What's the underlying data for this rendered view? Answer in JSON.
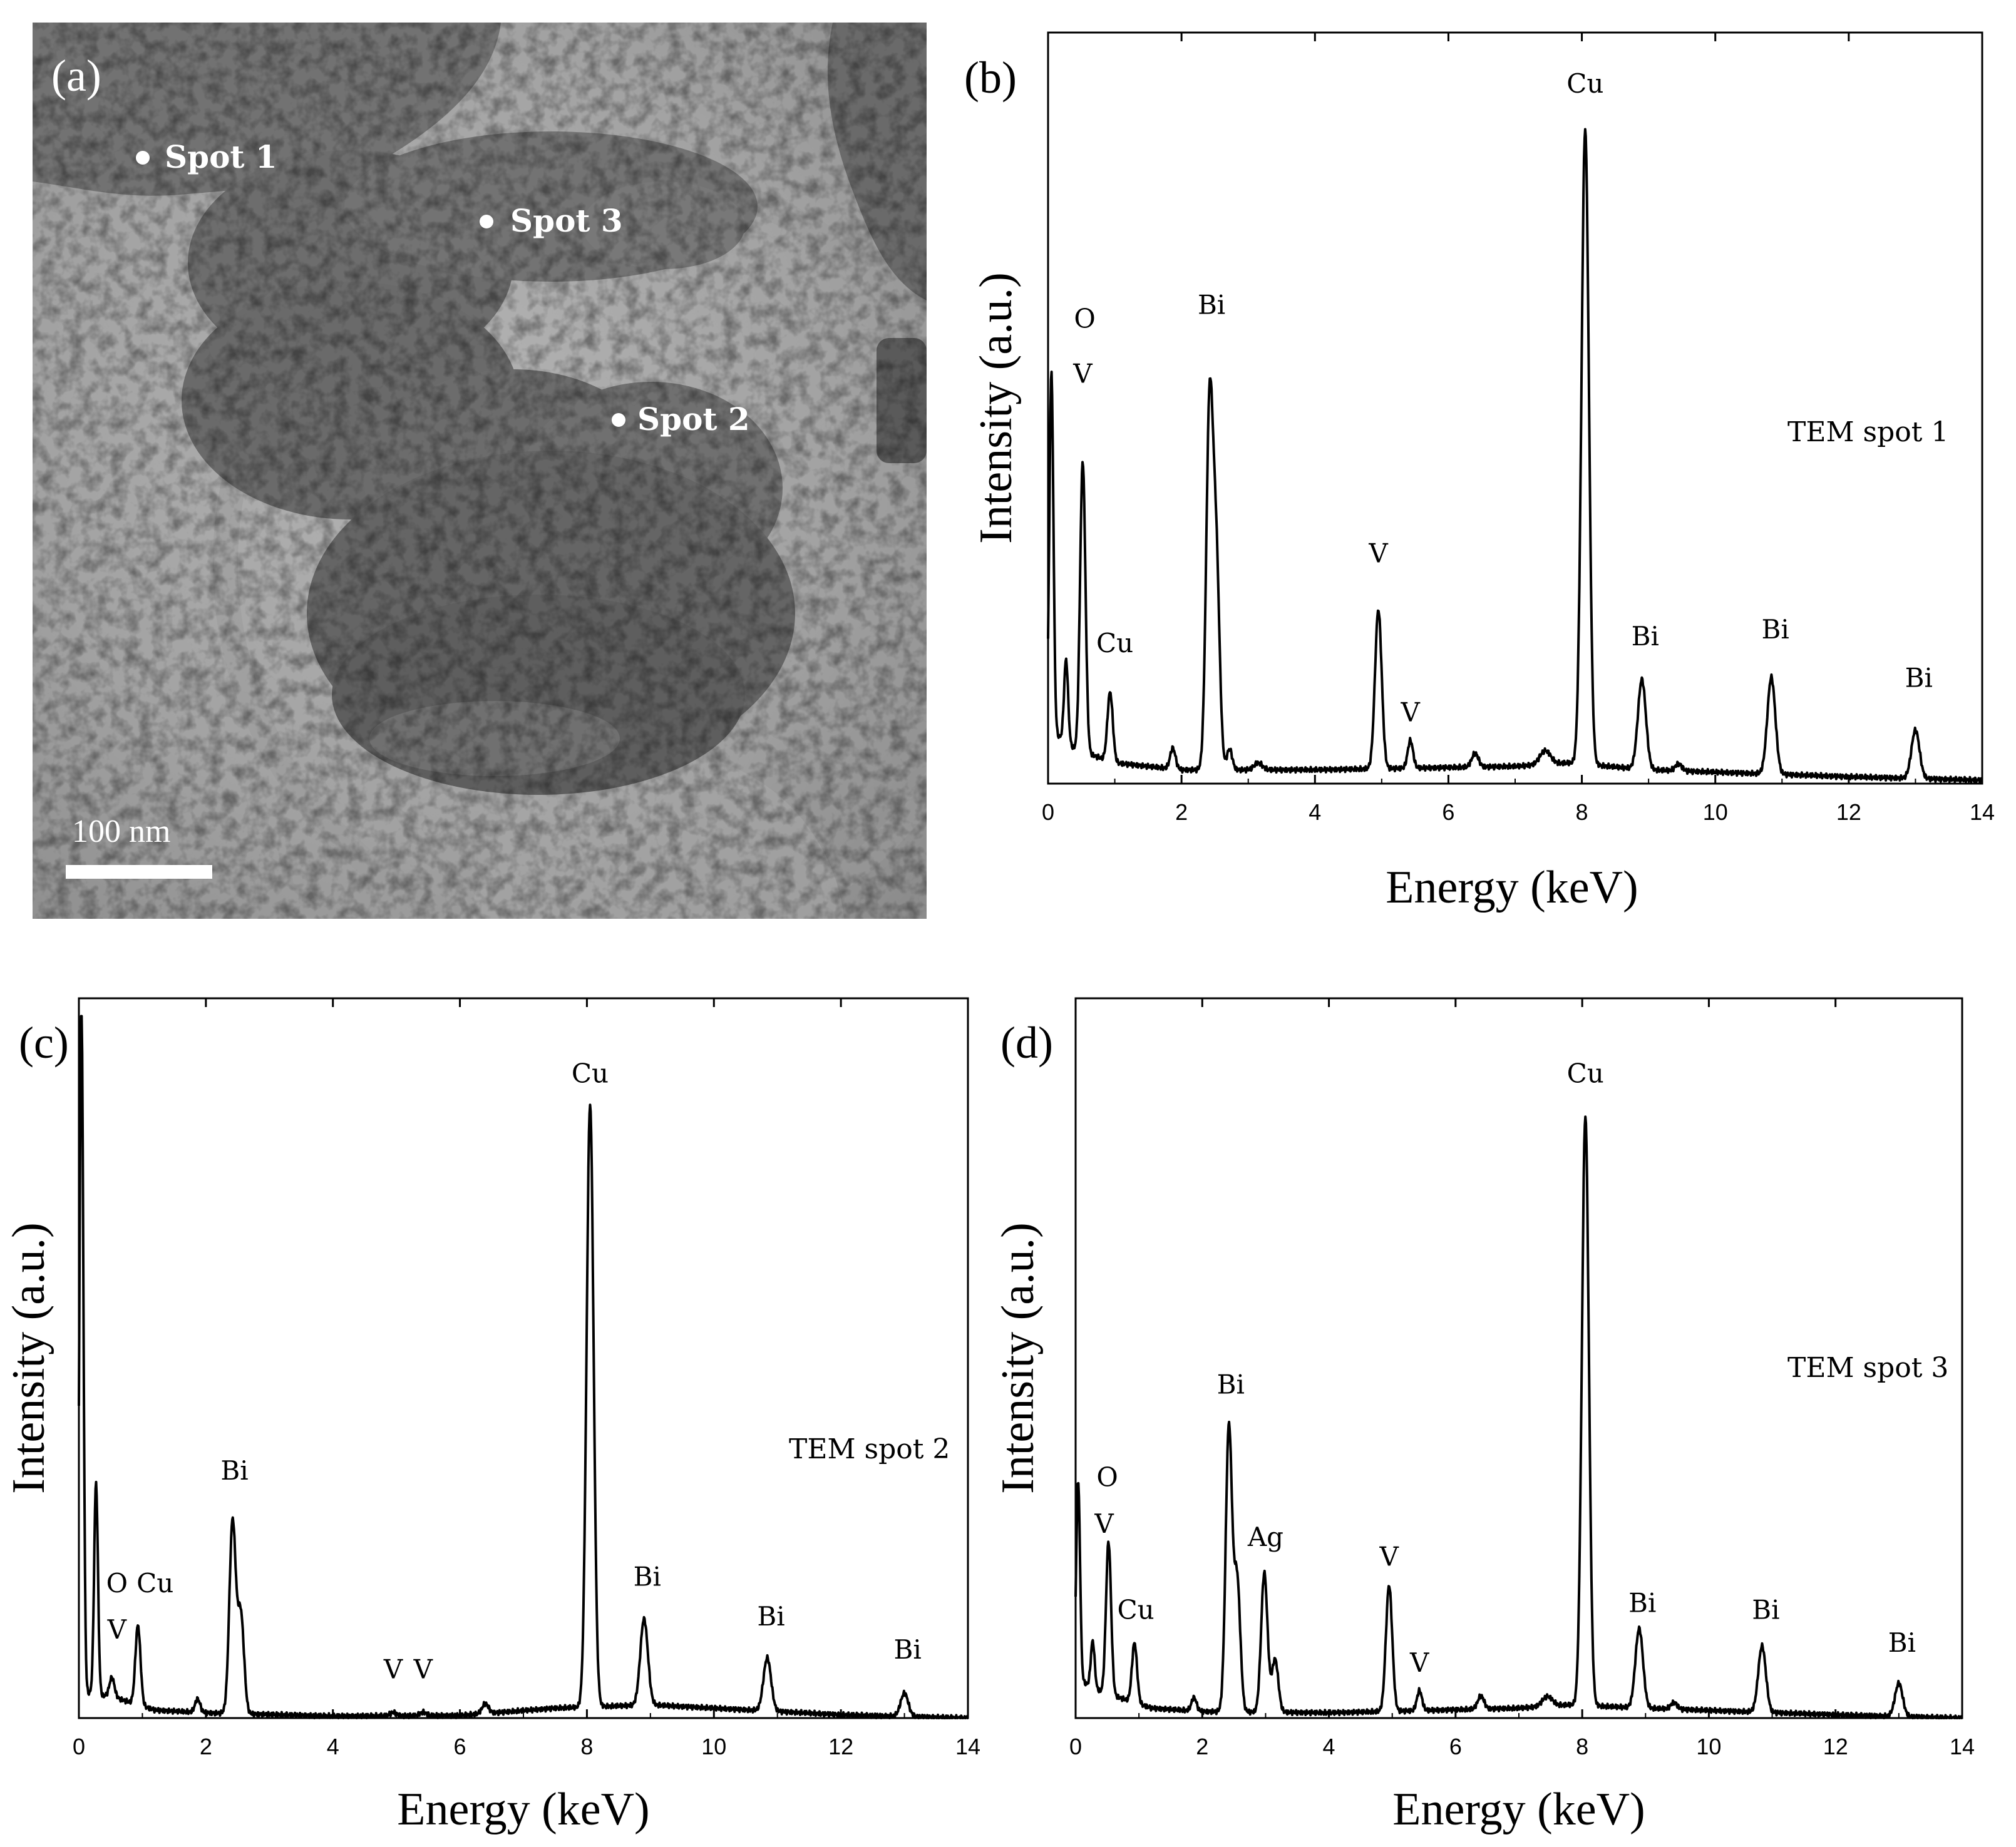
{
  "panel_a": {
    "label": "(a)",
    "scale_bar_label": "100 nm",
    "spots": [
      {
        "label": "Spot 1"
      },
      {
        "label": "Spot 3"
      },
      {
        "label": "Spot 2"
      }
    ]
  },
  "chart_data": [
    {
      "panel": "(b)",
      "type": "line",
      "title": "",
      "xlabel": "Energy (keV)",
      "ylabel": "Intensity (a.u.)",
      "xlim": [
        0,
        14
      ],
      "x_ticks": [
        "0",
        "2",
        "4",
        "6",
        "8",
        "10",
        "12",
        "14"
      ],
      "annotation": "TEM spot 1",
      "grid": false,
      "peaks": [
        {
          "x": 0.05,
          "y": 0.52,
          "w": 0.03
        },
        {
          "x": 0.27,
          "y": 0.12,
          "w": 0.03
        },
        {
          "x": 0.52,
          "y": 0.42,
          "w": 0.04
        },
        {
          "x": 0.93,
          "y": 0.1,
          "w": 0.04
        },
        {
          "x": 1.87,
          "y": 0.03,
          "w": 0.04
        },
        {
          "x": 2.42,
          "y": 0.52,
          "w": 0.05
        },
        {
          "x": 2.52,
          "y": 0.3,
          "w": 0.05
        },
        {
          "x": 2.72,
          "y": 0.03,
          "w": 0.04
        },
        {
          "x": 3.15,
          "y": 0.01,
          "w": 0.06
        },
        {
          "x": 4.95,
          "y": 0.23,
          "w": 0.05
        },
        {
          "x": 5.43,
          "y": 0.04,
          "w": 0.04
        },
        {
          "x": 6.4,
          "y": 0.02,
          "w": 0.05
        },
        {
          "x": 7.45,
          "y": 0.02,
          "w": 0.08
        },
        {
          "x": 8.05,
          "y": 0.92,
          "w": 0.055
        },
        {
          "x": 8.9,
          "y": 0.13,
          "w": 0.06
        },
        {
          "x": 9.45,
          "y": 0.01,
          "w": 0.05
        },
        {
          "x": 10.84,
          "y": 0.14,
          "w": 0.06
        },
        {
          "x": 13.0,
          "y": 0.07,
          "w": 0.06
        }
      ],
      "baseline": [
        [
          0,
          0.08
        ],
        [
          0.4,
          0.05
        ],
        [
          1.0,
          0.03
        ],
        [
          2.0,
          0.02
        ],
        [
          4.0,
          0.02
        ],
        [
          7.0,
          0.025
        ],
        [
          7.8,
          0.03
        ],
        [
          9.0,
          0.02
        ],
        [
          12.0,
          0.01
        ],
        [
          14.0,
          0.005
        ]
      ],
      "labels": [
        {
          "text": "O",
          "x": 0.55,
          "y": 0.66
        },
        {
          "text": "V",
          "x": 0.52,
          "y": 0.58
        },
        {
          "text": "Cu",
          "x": 1.0,
          "y": 0.19
        },
        {
          "text": "Bi",
          "x": 2.45,
          "y": 0.68
        },
        {
          "text": "V",
          "x": 4.95,
          "y": 0.32
        },
        {
          "text": "V",
          "x": 5.43,
          "y": 0.09
        },
        {
          "text": "Cu",
          "x": 8.05,
          "y": 1.0
        },
        {
          "text": "Bi",
          "x": 8.95,
          "y": 0.2
        },
        {
          "text": "Bi",
          "x": 10.9,
          "y": 0.21
        },
        {
          "text": "Bi",
          "x": 13.05,
          "y": 0.14
        }
      ]
    },
    {
      "panel": "(c)",
      "type": "line",
      "title": "",
      "xlabel": "Energy (keV)",
      "ylabel": "Intensity (a.u.)",
      "xlim": [
        0,
        14
      ],
      "x_ticks": [
        "0",
        "2",
        "4",
        "6",
        "8",
        "10",
        "12",
        "14"
      ],
      "annotation": "TEM spot 2",
      "grid": false,
      "peaks": [
        {
          "x": 0.04,
          "y": 1.05,
          "w": 0.03
        },
        {
          "x": 0.27,
          "y": 0.32,
          "w": 0.03
        },
        {
          "x": 0.52,
          "y": 0.03,
          "w": 0.04
        },
        {
          "x": 0.93,
          "y": 0.12,
          "w": 0.04
        },
        {
          "x": 1.87,
          "y": 0.02,
          "w": 0.04
        },
        {
          "x": 2.42,
          "y": 0.29,
          "w": 0.05
        },
        {
          "x": 2.55,
          "y": 0.15,
          "w": 0.05
        },
        {
          "x": 4.95,
          "y": 0.005,
          "w": 0.05
        },
        {
          "x": 5.42,
          "y": 0.005,
          "w": 0.05
        },
        {
          "x": 6.4,
          "y": 0.015,
          "w": 0.05
        },
        {
          "x": 8.05,
          "y": 0.91,
          "w": 0.055
        },
        {
          "x": 8.9,
          "y": 0.13,
          "w": 0.06
        },
        {
          "x": 10.84,
          "y": 0.08,
          "w": 0.06
        },
        {
          "x": 13.0,
          "y": 0.035,
          "w": 0.06
        }
      ],
      "baseline": [
        [
          0,
          0.04
        ],
        [
          0.6,
          0.03
        ],
        [
          1.2,
          0.012
        ],
        [
          2.0,
          0.008
        ],
        [
          4.0,
          0.003
        ],
        [
          6.0,
          0.004
        ],
        [
          7.5,
          0.015
        ],
        [
          9.0,
          0.02
        ],
        [
          12.0,
          0.005
        ],
        [
          14.0,
          0.0
        ]
      ],
      "labels": [
        {
          "text": "O",
          "x": 0.6,
          "y": 0.19
        },
        {
          "text": "V",
          "x": 0.6,
          "y": 0.12
        },
        {
          "text": "Cu",
          "x": 1.2,
          "y": 0.19
        },
        {
          "text": "Bi",
          "x": 2.45,
          "y": 0.36
        },
        {
          "text": "V",
          "x": 4.95,
          "y": 0.06
        },
        {
          "text": "V",
          "x": 5.42,
          "y": 0.06
        },
        {
          "text": "Cu",
          "x": 8.05,
          "y": 0.96
        },
        {
          "text": "Bi",
          "x": 8.95,
          "y": 0.2
        },
        {
          "text": "Bi",
          "x": 10.9,
          "y": 0.14
        },
        {
          "text": "Bi",
          "x": 13.05,
          "y": 0.09
        }
      ]
    },
    {
      "panel": "(d)",
      "type": "line",
      "title": "",
      "xlabel": "Energy (keV)",
      "ylabel": "Intensity (a.u.)",
      "xlim": [
        0,
        14
      ],
      "x_ticks": [
        "0",
        "2",
        "4",
        "6",
        "8",
        "10",
        "12",
        "14"
      ],
      "annotation": "TEM spot 3",
      "grid": false,
      "peaks": [
        {
          "x": 0.04,
          "y": 0.3,
          "w": 0.03
        },
        {
          "x": 0.27,
          "y": 0.07,
          "w": 0.03
        },
        {
          "x": 0.52,
          "y": 0.23,
          "w": 0.04
        },
        {
          "x": 0.93,
          "y": 0.09,
          "w": 0.04
        },
        {
          "x": 1.87,
          "y": 0.02,
          "w": 0.04
        },
        {
          "x": 2.42,
          "y": 0.43,
          "w": 0.05
        },
        {
          "x": 2.55,
          "y": 0.2,
          "w": 0.05
        },
        {
          "x": 2.98,
          "y": 0.21,
          "w": 0.05
        },
        {
          "x": 3.15,
          "y": 0.08,
          "w": 0.05
        },
        {
          "x": 4.95,
          "y": 0.19,
          "w": 0.05
        },
        {
          "x": 5.43,
          "y": 0.03,
          "w": 0.04
        },
        {
          "x": 6.4,
          "y": 0.02,
          "w": 0.05
        },
        {
          "x": 7.45,
          "y": 0.015,
          "w": 0.08
        },
        {
          "x": 8.05,
          "y": 0.89,
          "w": 0.055
        },
        {
          "x": 8.9,
          "y": 0.12,
          "w": 0.06
        },
        {
          "x": 9.45,
          "y": 0.01,
          "w": 0.05
        },
        {
          "x": 10.84,
          "y": 0.1,
          "w": 0.06
        },
        {
          "x": 13.0,
          "y": 0.05,
          "w": 0.06
        }
      ],
      "baseline": [
        [
          0,
          0.06
        ],
        [
          0.4,
          0.04
        ],
        [
          1.2,
          0.015
        ],
        [
          2.0,
          0.01
        ],
        [
          4.0,
          0.008
        ],
        [
          7.0,
          0.015
        ],
        [
          7.8,
          0.02
        ],
        [
          9.0,
          0.015
        ],
        [
          12.0,
          0.005
        ],
        [
          14.0,
          0.0
        ]
      ],
      "labels": [
        {
          "text": "O",
          "x": 0.5,
          "y": 0.35
        },
        {
          "text": "V",
          "x": 0.45,
          "y": 0.28
        },
        {
          "text": "Cu",
          "x": 0.95,
          "y": 0.15
        },
        {
          "text": "Bi",
          "x": 2.45,
          "y": 0.49
        },
        {
          "text": "Ag",
          "x": 3.0,
          "y": 0.26
        },
        {
          "text": "V",
          "x": 4.95,
          "y": 0.23
        },
        {
          "text": "V",
          "x": 5.43,
          "y": 0.07
        },
        {
          "text": "Cu",
          "x": 8.05,
          "y": 0.96
        },
        {
          "text": "Bi",
          "x": 8.95,
          "y": 0.16
        },
        {
          "text": "Bi",
          "x": 10.9,
          "y": 0.15
        },
        {
          "text": "Bi",
          "x": 13.05,
          "y": 0.1
        }
      ]
    }
  ]
}
